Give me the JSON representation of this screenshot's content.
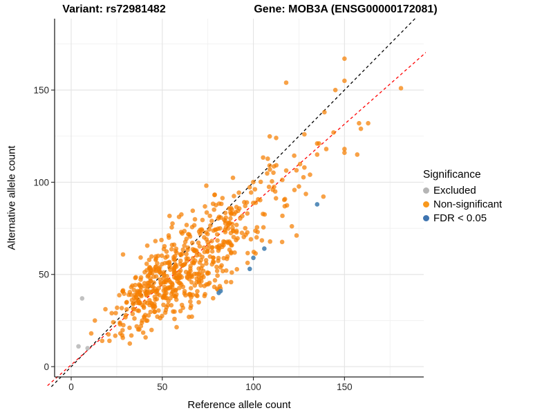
{
  "figure": {
    "title_left": "Variant: rs72981482",
    "title_right": "Gene: MOB3A (ENSG00000172081)"
  },
  "chart_data": {
    "type": "scatter",
    "title": "Variant: rs72981482 — Gene: MOB3A (ENSG00000172081)",
    "xlabel": "Reference allele count",
    "ylabel": "Alternative allele count",
    "xlim": [
      -9.1,
      193.5
    ],
    "ylim": [
      -5.6,
      188.7
    ],
    "x_ticks": [
      0,
      50,
      100,
      150
    ],
    "y_ticks": [
      0,
      50,
      100,
      150
    ],
    "x_minor_gridlines": [
      25,
      75,
      125,
      175
    ],
    "y_minor_gridlines": [
      25,
      75,
      125,
      175
    ],
    "grid": "major+minor",
    "background": "#ffffff",
    "axis_color": "#222222",
    "major_grid_color": "#e3e3e3",
    "minor_grid_color": "#f0f0f0",
    "legend": {
      "title": "Significance",
      "position": "right",
      "entries": [
        {
          "label": "Excluded",
          "color": "#b5b5b5"
        },
        {
          "label": "Non-significant",
          "color": "#f8981d"
        },
        {
          "label": "FDR < 0.05",
          "color": "#3e74b0"
        }
      ]
    },
    "reference_lines": [
      {
        "name": "identity",
        "equation": "y = x",
        "slope": 1,
        "intercept": 0,
        "color": "#000000",
        "style": "dashed"
      },
      {
        "name": "regression",
        "equation": "y = 0.87x + 1",
        "slope": 0.87,
        "intercept": 1,
        "color": "#ff0000",
        "style": "dashed"
      }
    ],
    "series": [
      {
        "name": "Excluded",
        "color": "#bebebe",
        "opacity": 0.95,
        "points": [
          [
            6,
            37
          ],
          [
            4,
            11
          ],
          [
            9,
            10
          ]
        ]
      },
      {
        "name": "FDR < 0.05",
        "color": "#4682b4",
        "opacity": 0.9,
        "points": [
          [
            135,
            88
          ],
          [
            106,
            64
          ],
          [
            100,
            59
          ],
          [
            98,
            53
          ],
          [
            82,
            41
          ],
          [
            81,
            40
          ]
        ]
      },
      {
        "name": "Non-significant",
        "color": "#f57e00",
        "opacity": 0.72,
        "points": [
          [
            150,
            167
          ],
          [
            181,
            151
          ],
          [
            150,
            155
          ],
          [
            145,
            150
          ],
          [
            139,
            138
          ],
          [
            158,
            132
          ],
          [
            163,
            132
          ],
          [
            159,
            129
          ],
          [
            144,
            127
          ],
          [
            128,
            126
          ],
          [
            135,
            121
          ],
          [
            136,
            121
          ],
          [
            140,
            118
          ],
          [
            135,
            115
          ],
          [
            150,
            118
          ],
          [
            150,
            116
          ],
          [
            157,
            115
          ],
          [
            128,
            108
          ],
          [
            118,
            154
          ],
          [
            11,
            18
          ],
          [
            17,
            14
          ],
          [
            21,
            14
          ],
          [
            27,
            18
          ],
          [
            28,
            17
          ],
          [
            13,
            25
          ]
        ],
        "cloud_summary": {
          "description": "dense cloud of het-site allele counts along y=0.87x",
          "count": 610,
          "seed": 42,
          "coverage_log_mean": 4.745,
          "coverage_log_sd": 0.38,
          "coverage_min": 26,
          "coverage_max": 240,
          "ref_fraction_mean": 0.535,
          "overdispersion": 1.25,
          "x_range_dense": [
            40,
            90
          ],
          "y_range_dense": [
            35,
            80
          ]
        }
      }
    ]
  }
}
